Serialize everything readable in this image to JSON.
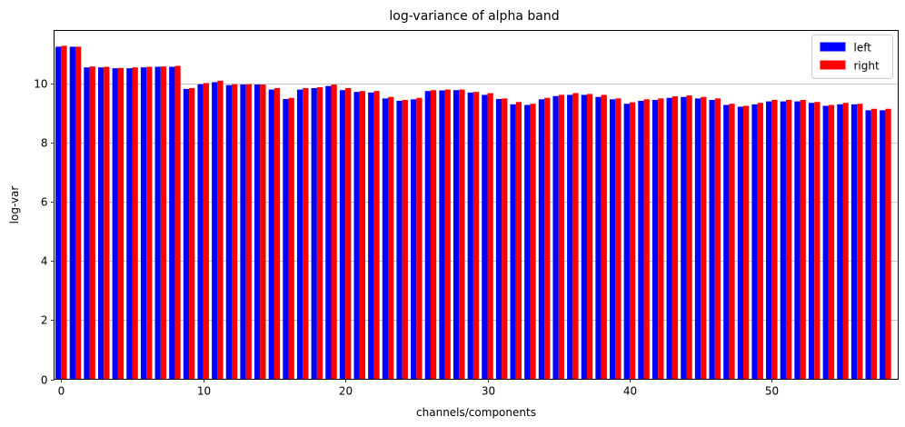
{
  "chart_data": {
    "type": "bar",
    "title": "log-variance of alpha band",
    "xlabel": "channels/components",
    "ylabel": "log-var",
    "xlim": [
      -0.5,
      58.9
    ],
    "ylim": [
      0,
      11.8
    ],
    "xticks": [
      0,
      10,
      20,
      30,
      40,
      50
    ],
    "yticks": [
      0,
      2,
      4,
      6,
      8,
      10
    ],
    "grid": "y",
    "legend_position": "top-right",
    "x": [
      0,
      1,
      2,
      3,
      4,
      5,
      6,
      7,
      8,
      9,
      10,
      11,
      12,
      13,
      14,
      15,
      16,
      17,
      18,
      19,
      20,
      21,
      22,
      23,
      24,
      25,
      26,
      27,
      28,
      29,
      30,
      31,
      32,
      33,
      34,
      35,
      36,
      37,
      38,
      39,
      40,
      41,
      42,
      43,
      44,
      45,
      46,
      47,
      48,
      49,
      50,
      51,
      52,
      53,
      54,
      55,
      56,
      57,
      58
    ],
    "series": [
      {
        "name": "left",
        "color": "#0000ff",
        "values": [
          11.25,
          11.25,
          10.55,
          10.55,
          10.52,
          10.52,
          10.55,
          10.57,
          10.57,
          9.82,
          9.98,
          10.05,
          9.95,
          9.97,
          9.97,
          9.8,
          9.48,
          9.8,
          9.85,
          9.92,
          9.78,
          9.72,
          9.7,
          9.5,
          9.42,
          9.47,
          9.75,
          9.77,
          9.78,
          9.7,
          9.62,
          9.48,
          9.3,
          9.28,
          9.47,
          9.58,
          9.62,
          9.62,
          9.55,
          9.47,
          9.32,
          9.42,
          9.45,
          9.52,
          9.55,
          9.5,
          9.45,
          9.28,
          9.22,
          9.3,
          9.4,
          9.4,
          9.4,
          9.35,
          9.25,
          9.3,
          9.3,
          9.1,
          9.1
        ]
      },
      {
        "name": "right",
        "color": "#ff0000",
        "values": [
          11.28,
          11.25,
          10.58,
          10.57,
          10.53,
          10.55,
          10.57,
          10.58,
          10.6,
          9.85,
          10.02,
          10.1,
          9.98,
          9.98,
          9.97,
          9.85,
          9.52,
          9.85,
          9.88,
          9.97,
          9.85,
          9.75,
          9.75,
          9.55,
          9.45,
          9.52,
          9.78,
          9.8,
          9.8,
          9.72,
          9.68,
          9.5,
          9.38,
          9.32,
          9.52,
          9.62,
          9.68,
          9.65,
          9.62,
          9.5,
          9.37,
          9.47,
          9.5,
          9.57,
          9.6,
          9.55,
          9.5,
          9.32,
          9.25,
          9.35,
          9.45,
          9.45,
          9.45,
          9.38,
          9.28,
          9.35,
          9.32,
          9.15,
          9.15
        ]
      }
    ]
  }
}
